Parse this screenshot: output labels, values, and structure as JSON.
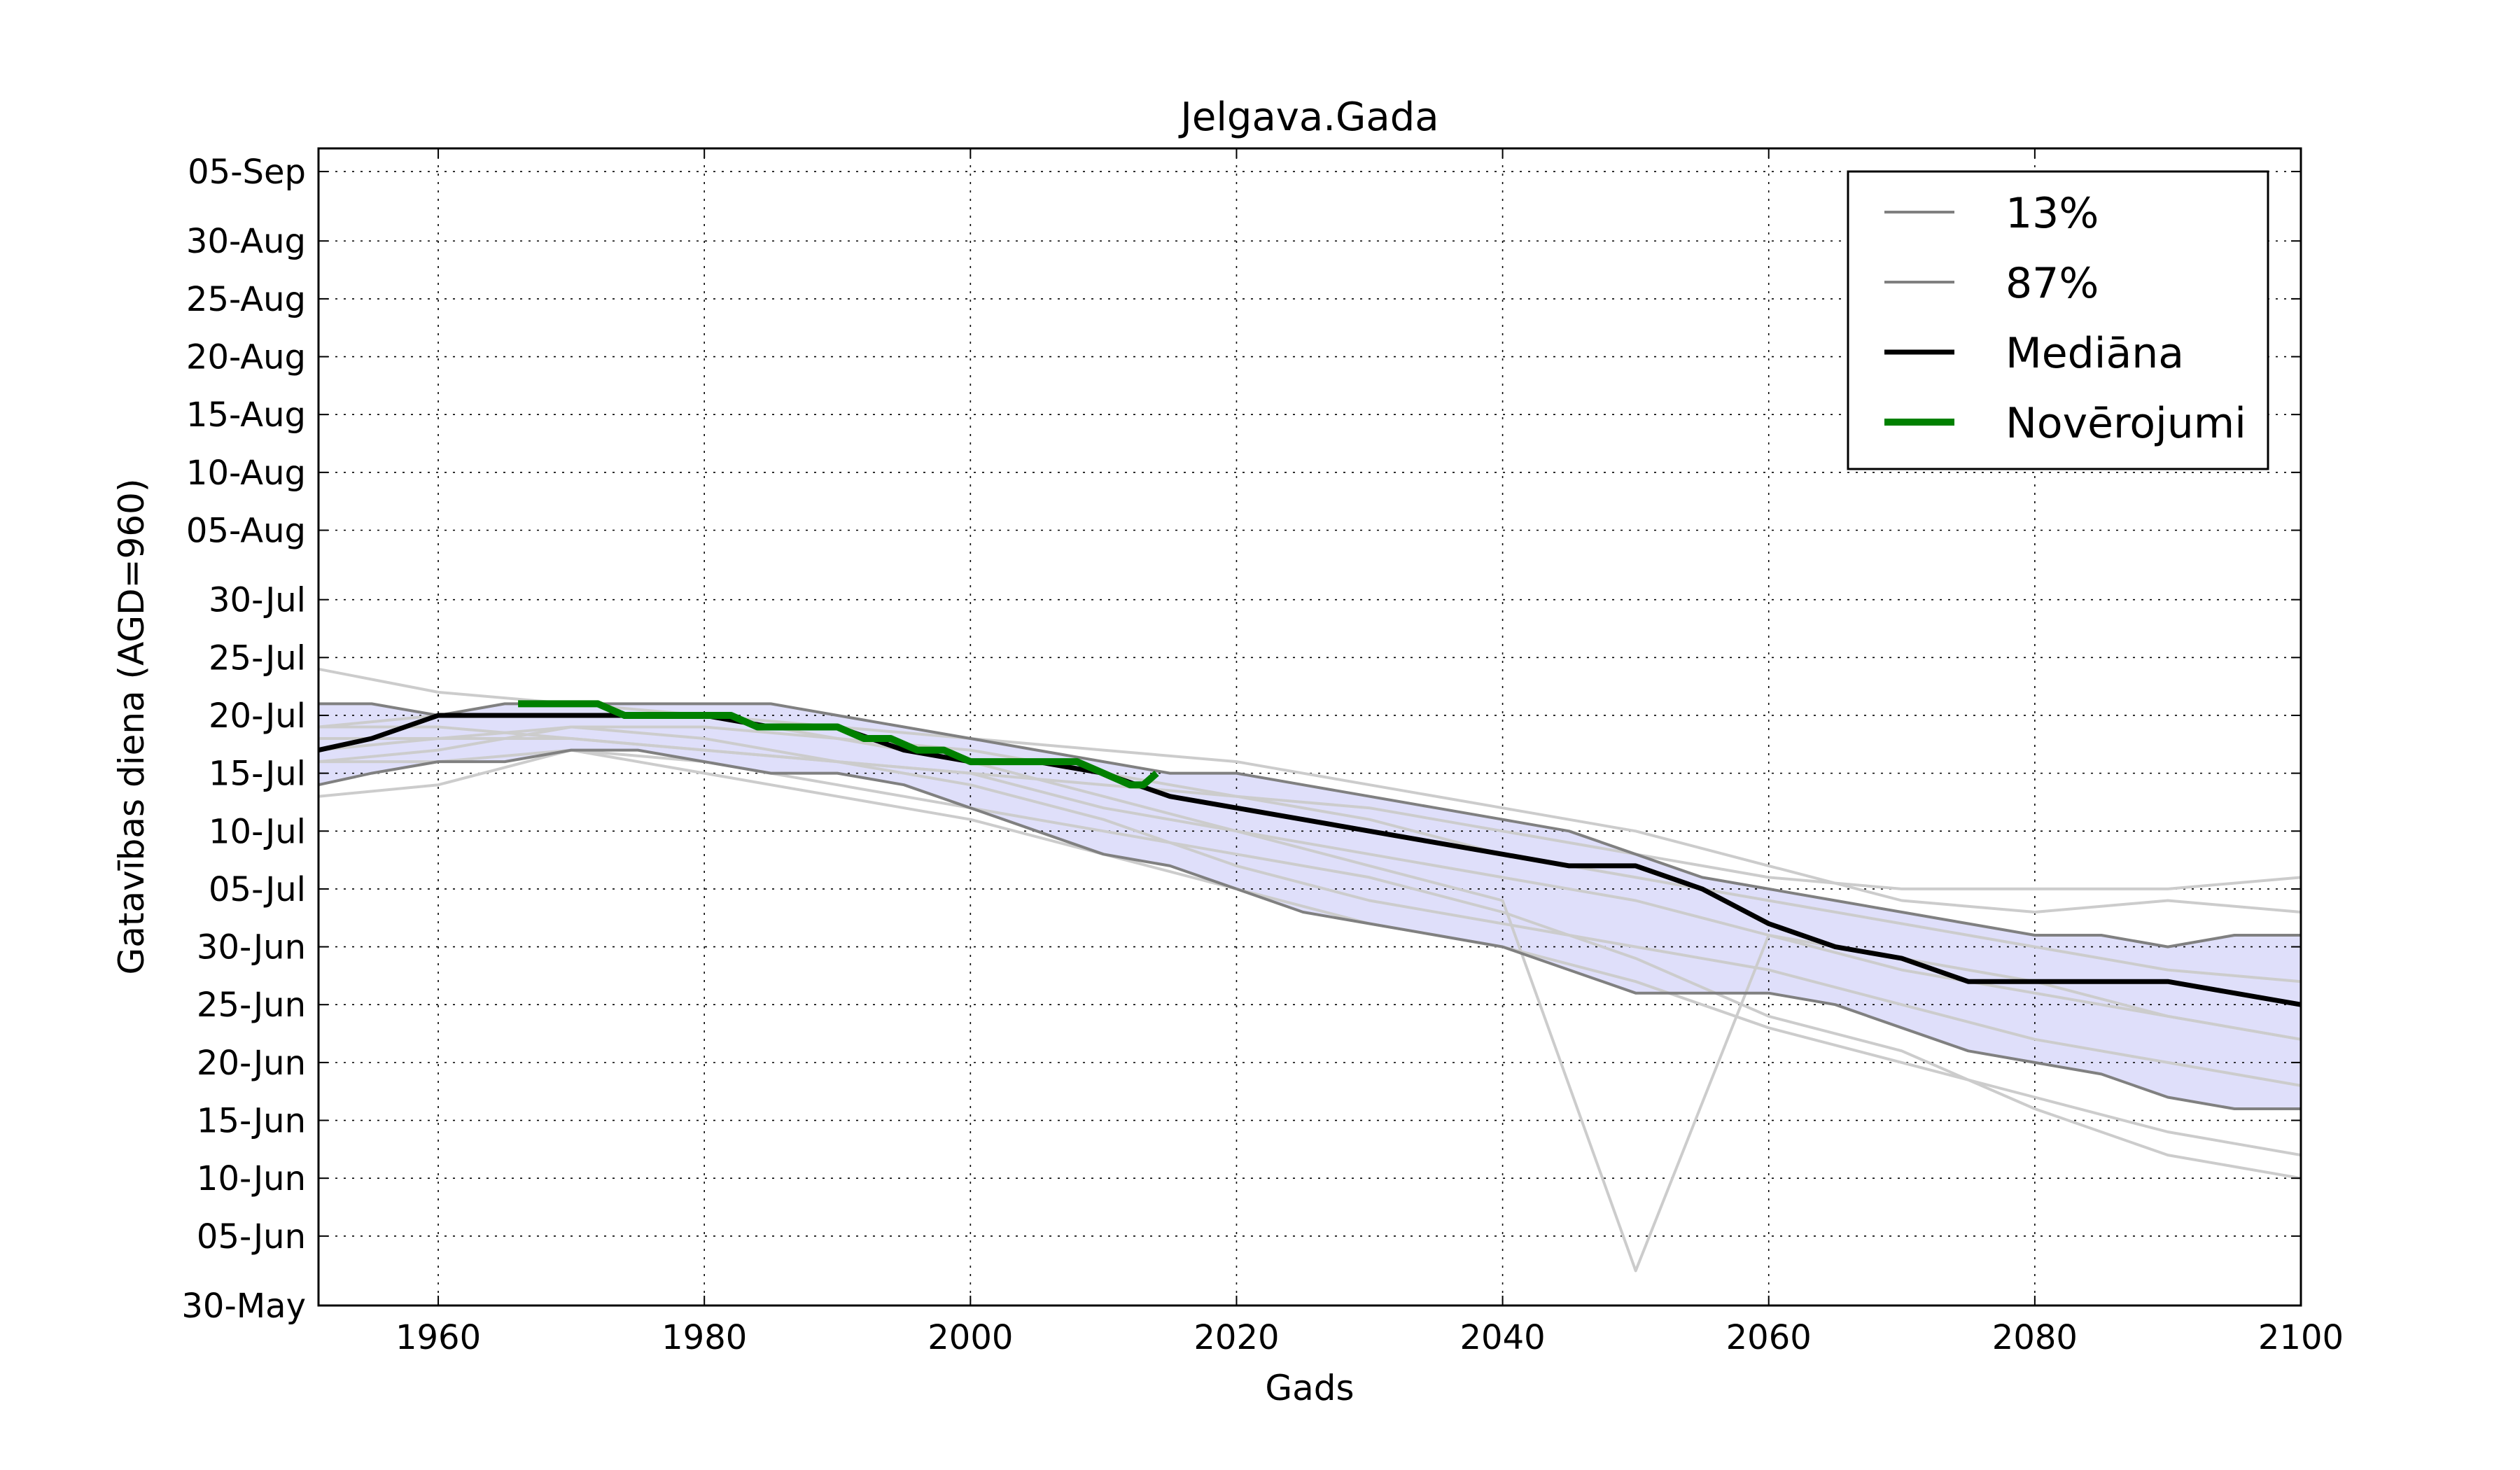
{
  "chart_data": {
    "type": "line",
    "title": "Jelgava.Gada",
    "xlabel": "Gads",
    "ylabel": "Gatavības diena (AGD=960)",
    "xlim": [
      1951,
      2100
    ],
    "ylim": [
      "30-May",
      "07-Sep"
    ],
    "x_ticks": [
      1960,
      1980,
      2000,
      2020,
      2040,
      2060,
      2080,
      2100
    ],
    "y_ticks": [
      "30-May",
      "05-Jun",
      "10-Jun",
      "15-Jun",
      "20-Jun",
      "25-Jun",
      "30-Jun",
      "05-Jul",
      "10-Jul",
      "15-Jul",
      "20-Jul",
      "25-Jul",
      "30-Jul",
      "05-Aug",
      "10-Aug",
      "15-Aug",
      "20-Aug",
      "25-Aug",
      "30-Aug",
      "05-Sep"
    ],
    "grid": true,
    "legend_position": "top-right",
    "band": {
      "between": [
        "13%",
        "87%"
      ],
      "color": "#dcdcfa",
      "x": [
        1951,
        1955,
        1960,
        1965,
        1970,
        1975,
        1980,
        1985,
        1990,
        1995,
        2000,
        2005,
        2010,
        2015,
        2020,
        2025,
        2030,
        2035,
        2040,
        2045,
        2050,
        2055,
        2060,
        2065,
        2070,
        2075,
        2080,
        2085,
        2090,
        2095,
        2100
      ],
      "lower": [
        "14-Jul",
        "15-Jul",
        "16-Jul",
        "16-Jul",
        "17-Jul",
        "17-Jul",
        "16-Jul",
        "15-Jul",
        "15-Jul",
        "14-Jul",
        "12-Jul",
        "10-Jul",
        "08-Jul",
        "07-Jul",
        "05-Jul",
        "03-Jul",
        "02-Jul",
        "01-Jul",
        "30-Jun",
        "28-Jun",
        "26-Jun",
        "26-Jun",
        "26-Jun",
        "25-Jun",
        "23-Jun",
        "21-Jun",
        "20-Jun",
        "19-Jun",
        "17-Jun",
        "16-Jun",
        "16-Jun"
      ],
      "upper": [
        "21-Jul",
        "21-Jul",
        "20-Jul",
        "21-Jul",
        "21-Jul",
        "21-Jul",
        "21-Jul",
        "21-Jul",
        "20-Jul",
        "19-Jul",
        "18-Jul",
        "17-Jul",
        "16-Jul",
        "15-Jul",
        "15-Jul",
        "14-Jul",
        "13-Jul",
        "12-Jul",
        "11-Jul",
        "10-Jul",
        "08-Jul",
        "06-Jul",
        "05-Jul",
        "04-Jul",
        "03-Jul",
        "02-Jul",
        "01-Jul",
        "01-Jul",
        "30-Jun",
        "01-Jul",
        "01-Jul"
      ]
    },
    "series": [
      {
        "name": "13%",
        "color": "#808080",
        "x": [
          1951,
          1955,
          1960,
          1965,
          1970,
          1975,
          1980,
          1985,
          1990,
          1995,
          2000,
          2005,
          2010,
          2015,
          2020,
          2025,
          2030,
          2035,
          2040,
          2045,
          2050,
          2055,
          2060,
          2065,
          2070,
          2075,
          2080,
          2085,
          2090,
          2095,
          2100
        ],
        "values": [
          "14-Jul",
          "15-Jul",
          "16-Jul",
          "16-Jul",
          "17-Jul",
          "17-Jul",
          "16-Jul",
          "15-Jul",
          "15-Jul",
          "14-Jul",
          "12-Jul",
          "10-Jul",
          "08-Jul",
          "07-Jul",
          "05-Jul",
          "03-Jul",
          "02-Jul",
          "01-Jul",
          "30-Jun",
          "28-Jun",
          "26-Jun",
          "26-Jun",
          "26-Jun",
          "25-Jun",
          "23-Jun",
          "21-Jun",
          "20-Jun",
          "19-Jun",
          "17-Jun",
          "16-Jun",
          "16-Jun"
        ]
      },
      {
        "name": "87%",
        "color": "#808080",
        "x": [
          1951,
          1955,
          1960,
          1965,
          1970,
          1975,
          1980,
          1985,
          1990,
          1995,
          2000,
          2005,
          2010,
          2015,
          2020,
          2025,
          2030,
          2035,
          2040,
          2045,
          2050,
          2055,
          2060,
          2065,
          2070,
          2075,
          2080,
          2085,
          2090,
          2095,
          2100
        ],
        "values": [
          "21-Jul",
          "21-Jul",
          "20-Jul",
          "21-Jul",
          "21-Jul",
          "21-Jul",
          "21-Jul",
          "21-Jul",
          "20-Jul",
          "19-Jul",
          "18-Jul",
          "17-Jul",
          "16-Jul",
          "15-Jul",
          "15-Jul",
          "14-Jul",
          "13-Jul",
          "12-Jul",
          "11-Jul",
          "10-Jul",
          "08-Jul",
          "06-Jul",
          "05-Jul",
          "04-Jul",
          "03-Jul",
          "02-Jul",
          "01-Jul",
          "01-Jul",
          "30-Jun",
          "01-Jul",
          "01-Jul"
        ]
      },
      {
        "name": "Mediāna",
        "color": "#000000",
        "x": [
          1951,
          1955,
          1960,
          1965,
          1970,
          1975,
          1980,
          1985,
          1990,
          1995,
          2000,
          2005,
          2010,
          2015,
          2020,
          2025,
          2030,
          2035,
          2040,
          2045,
          2050,
          2055,
          2060,
          2065,
          2070,
          2075,
          2080,
          2085,
          2090,
          2095,
          2100
        ],
        "values": [
          "17-Jul",
          "18-Jul",
          "20-Jul",
          "20-Jul",
          "20-Jul",
          "20-Jul",
          "20-Jul",
          "19-Jul",
          "19-Jul",
          "17-Jul",
          "16-Jul",
          "16-Jul",
          "15-Jul",
          "13-Jul",
          "12-Jul",
          "11-Jul",
          "10-Jul",
          "09-Jul",
          "08-Jul",
          "07-Jul",
          "07-Jul",
          "05-Jul",
          "02-Jul",
          "30-Jun",
          "29-Jun",
          "27-Jun",
          "27-Jun",
          "27-Jun",
          "27-Jun",
          "26-Jun",
          "25-Jun"
        ]
      },
      {
        "name": "Novērojumi",
        "color": "#008000",
        "x": [
          1966,
          1968,
          1970,
          1972,
          1974,
          1976,
          1978,
          1980,
          1982,
          1984,
          1986,
          1988,
          1990,
          1992,
          1994,
          1996,
          1998,
          2000,
          2002,
          2004,
          2006,
          2008,
          2010,
          2012,
          2013,
          2014
        ],
        "values": [
          "21-Jul",
          "21-Jul",
          "21-Jul",
          "21-Jul",
          "20-Jul",
          "20-Jul",
          "20-Jul",
          "20-Jul",
          "20-Jul",
          "19-Jul",
          "19-Jul",
          "19-Jul",
          "19-Jul",
          "18-Jul",
          "18-Jul",
          "17-Jul",
          "17-Jul",
          "16-Jul",
          "16-Jul",
          "16-Jul",
          "16-Jul",
          "16-Jul",
          "15-Jul",
          "14-Jul",
          "14-Jul",
          "15-Jul"
        ]
      }
    ],
    "ensemble_members": {
      "color": "#cccccc",
      "x": [
        1951,
        1960,
        1970,
        1980,
        1990,
        2000,
        2010,
        2020,
        2030,
        2040,
        2050,
        2060,
        2070,
        2080,
        2090,
        2100
      ],
      "members": [
        [
          "24-Jul",
          "22-Jul",
          "21-Jul",
          "20-Jul",
          "18-Jul",
          "16-Jul",
          "13-Jul",
          "10-Jul",
          "07-Jul",
          "04-Jul",
          "02-Jun",
          "01-Jul",
          "29-Jun",
          "27-Jun",
          "24-Jun",
          "22-Jun"
        ],
        [
          "13-Jul",
          "14-Jul",
          "17-Jul",
          "15-Jul",
          "13-Jul",
          "11-Jul",
          "08-Jul",
          "05-Jul",
          "02-Jul",
          "30-Jun",
          "27-Jun",
          "23-Jun",
          "20-Jun",
          "17-Jun",
          "14-Jun",
          "12-Jun"
        ],
        [
          "19-Jul",
          "19-Jul",
          "18-Jul",
          "17-Jul",
          "16-Jul",
          "15-Jul",
          "14-Jul",
          "13-Jul",
          "12-Jul",
          "10-Jul",
          "08-Jul",
          "06-Jul",
          "05-Jul",
          "05-Jul",
          "05-Jul",
          "06-Jul"
        ],
        [
          "16-Jul",
          "17-Jul",
          "19-Jul",
          "18-Jul",
          "16-Jul",
          "14-Jul",
          "11-Jul",
          "07-Jul",
          "04-Jul",
          "02-Jul",
          "30-Jun",
          "28-Jun",
          "25-Jun",
          "22-Jun",
          "20-Jun",
          "18-Jun"
        ],
        [
          "18-Jul",
          "18-Jul",
          "19-Jul",
          "19-Jul",
          "18-Jul",
          "17-Jul",
          "15-Jul",
          "13-Jul",
          "11-Jul",
          "08-Jul",
          "06-Jul",
          "04-Jul",
          "02-Jul",
          "30-Jun",
          "28-Jun",
          "27-Jun"
        ],
        [
          "16-Jul",
          "16-Jul",
          "17-Jul",
          "16-Jul",
          "14-Jul",
          "12-Jul",
          "10-Jul",
          "08-Jul",
          "06-Jul",
          "03-Jul",
          "29-Jun",
          "24-Jun",
          "21-Jun",
          "16-Jun",
          "12-Jun",
          "10-Jun"
        ],
        [
          "19-Jul",
          "20-Jul",
          "20-Jul",
          "20-Jul",
          "19-Jul",
          "18-Jul",
          "17-Jul",
          "16-Jul",
          "14-Jul",
          "12-Jul",
          "10-Jul",
          "07-Jul",
          "04-Jul",
          "03-Jul",
          "04-Jul",
          "03-Jul"
        ],
        [
          "17-Jul",
          "18-Jul",
          "18-Jul",
          "17-Jul",
          "16-Jul",
          "15-Jul",
          "12-Jul",
          "10-Jul",
          "08-Jul",
          "06-Jul",
          "04-Jul",
          "01-Jul",
          "28-Jun",
          "26-Jun",
          "24-Jun",
          "22-Jun"
        ]
      ]
    },
    "legend": [
      {
        "label": "13%",
        "color": "#808080",
        "width": "thin"
      },
      {
        "label": "87%",
        "color": "#808080",
        "width": "thin"
      },
      {
        "label": "Mediāna",
        "color": "#000000",
        "width": "medium"
      },
      {
        "label": "Novērojumi",
        "color": "#008000",
        "width": "thick"
      }
    ]
  }
}
